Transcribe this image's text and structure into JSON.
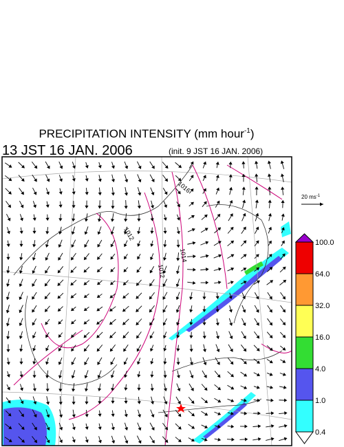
{
  "header": {
    "title": "PRECIPITATION INTENSITY (mm hour",
    "title_superscript": "-1",
    "title_close": ")",
    "valid_time": "13 JST 16 JAN. 2006",
    "init_time": "(init. 9 JST 16 JAN. 2006)"
  },
  "wind_reference": {
    "label": "20 ms",
    "label_superscript": "-1"
  },
  "colorbar": {
    "labels": [
      "100.0",
      "64.0",
      "32.0",
      "16.0",
      "4.0",
      "1.0",
      "0.4"
    ]
  },
  "isobars": {
    "labels": [
      "1012",
      "1012",
      "1014",
      "1016"
    ]
  }
}
